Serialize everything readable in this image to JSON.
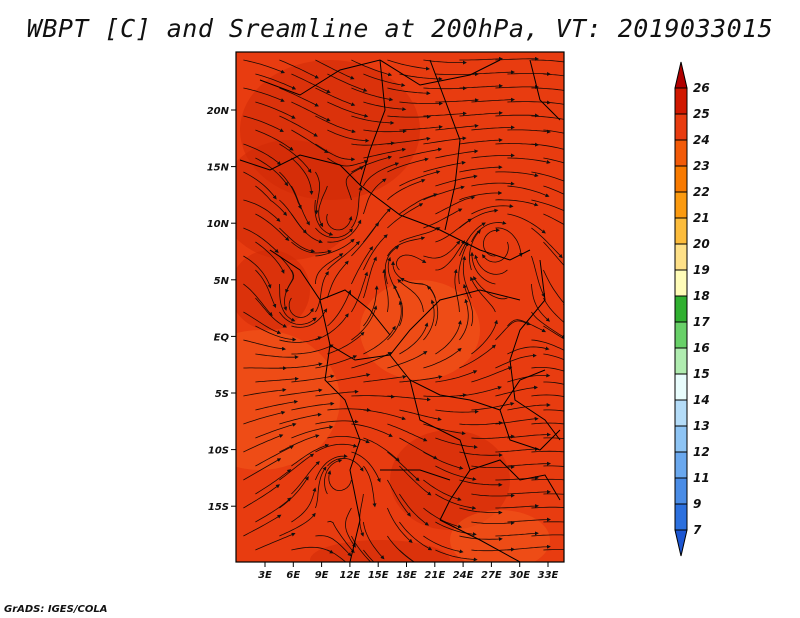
{
  "title": "WBPT [C] and Sreamline at 200hPa, VT: 2019033015",
  "credit": "GrADS: IGES/COLA",
  "map": {
    "lat_labels": [
      "20N",
      "15N",
      "10N",
      "5N",
      "EQ",
      "5S",
      "10S",
      "15S"
    ],
    "lon_labels": [
      "3E",
      "6E",
      "9E",
      "12E",
      "15E",
      "18E",
      "21E",
      "24E",
      "27E",
      "30E",
      "33E"
    ],
    "field_colors": {
      "base": "#e83c10",
      "dark": "#cf2a08",
      "light": "#f25a1c"
    }
  },
  "colorbar": {
    "labels": [
      "26",
      "25",
      "24",
      "23",
      "22",
      "21",
      "20",
      "19",
      "18",
      "17",
      "16",
      "15",
      "14",
      "13",
      "12",
      "11",
      "9",
      "7"
    ],
    "colors": [
      "#b00000",
      "#d01800",
      "#e83c10",
      "#f25a08",
      "#f87a00",
      "#fb9a10",
      "#fcbc3c",
      "#fee088",
      "#fffcb8",
      "#30b030",
      "#68d068",
      "#b0ecb0",
      "#e8fcfc",
      "#b4dcf8",
      "#8ec4f4",
      "#6aa8ee",
      "#4a8ce6",
      "#2c70de",
      "#1c56d2"
    ]
  }
}
